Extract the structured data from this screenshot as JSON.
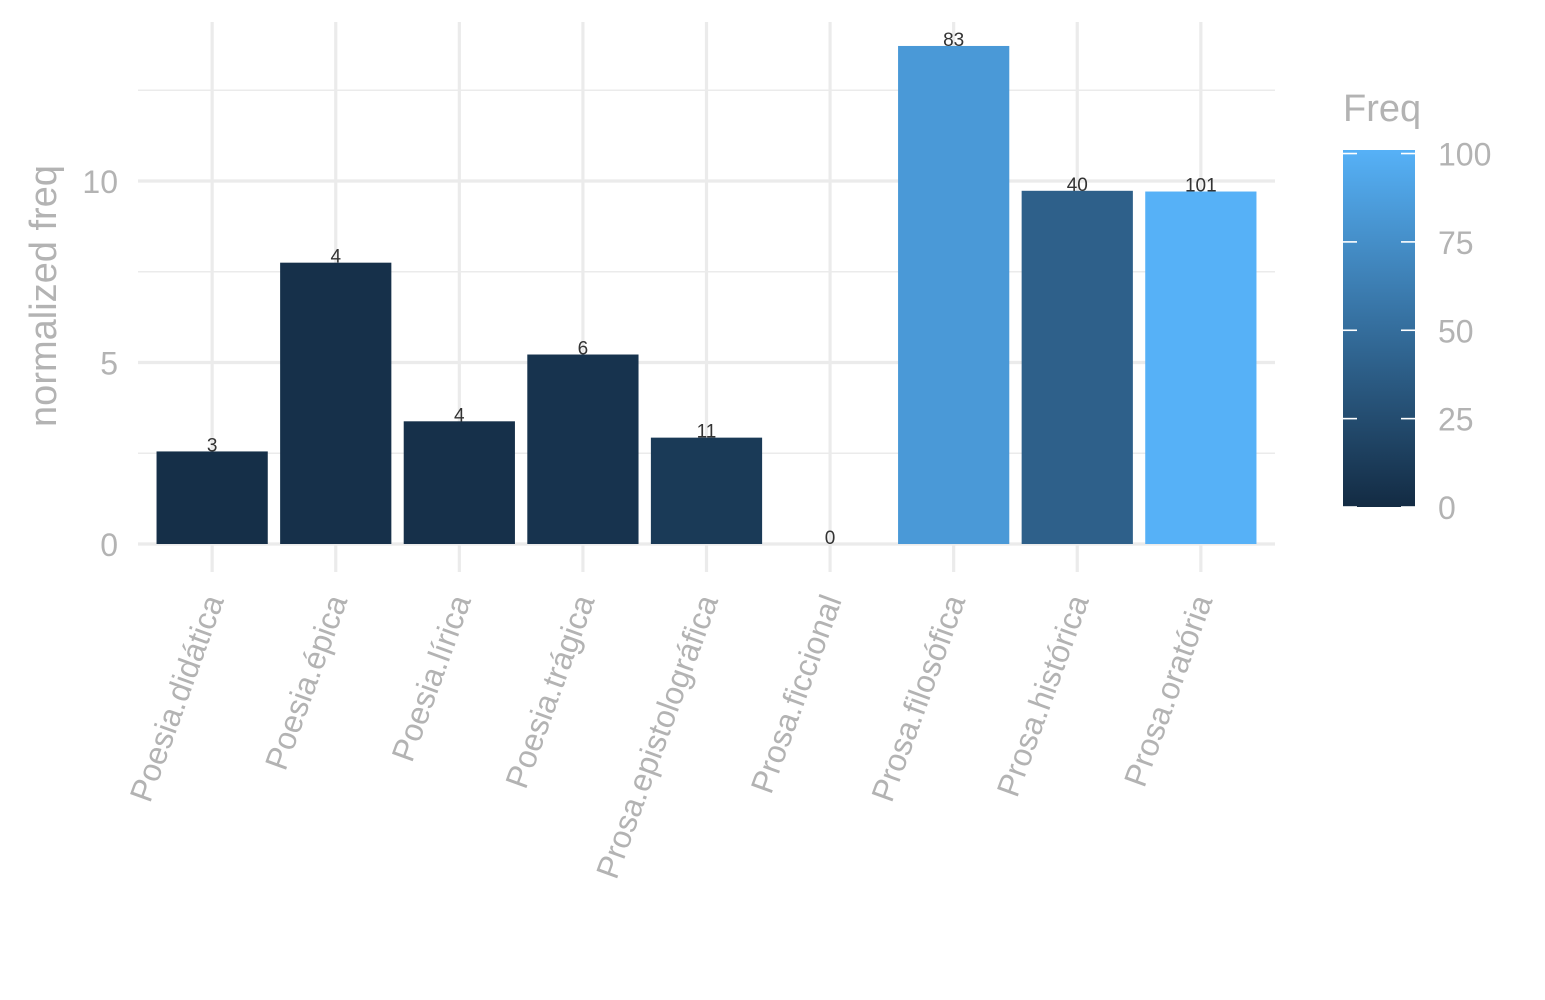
{
  "chart_data": {
    "type": "bar",
    "categories": [
      "Poesia.didática",
      "Poesia.épica",
      "Poesia.lírica",
      "Poesia.trágica",
      "Prosa.epistolográfica",
      "Prosa.ficcional",
      "Prosa.filosófica",
      "Prosa.histórica",
      "Prosa.oratória"
    ],
    "values": [
      2.55,
      7.75,
      3.38,
      5.22,
      2.93,
      0,
      13.72,
      9.73,
      9.71
    ],
    "freq": [
      3,
      4,
      4,
      6,
      11,
      0,
      83,
      40,
      101
    ],
    "data_labels": [
      "3",
      "4",
      "4",
      "6",
      "11",
      "0",
      "83",
      "40",
      "101"
    ],
    "ylabel": "normalized freq",
    "xlabel": "",
    "ylim": [
      -0.5,
      14.5
    ],
    "y_ticks": [
      0,
      5,
      10
    ],
    "y_tick_labels": [
      "0",
      "5",
      "10"
    ],
    "grid": true,
    "legend": {
      "title": "Freq",
      "placement": "right",
      "range": [
        0,
        101
      ],
      "ticks": [
        0,
        25,
        50,
        75,
        100
      ],
      "tick_labels": [
        "0",
        "25",
        "50",
        "75",
        "100"
      ],
      "color_low": "#132B43",
      "color_high": "#56B1F7"
    }
  }
}
